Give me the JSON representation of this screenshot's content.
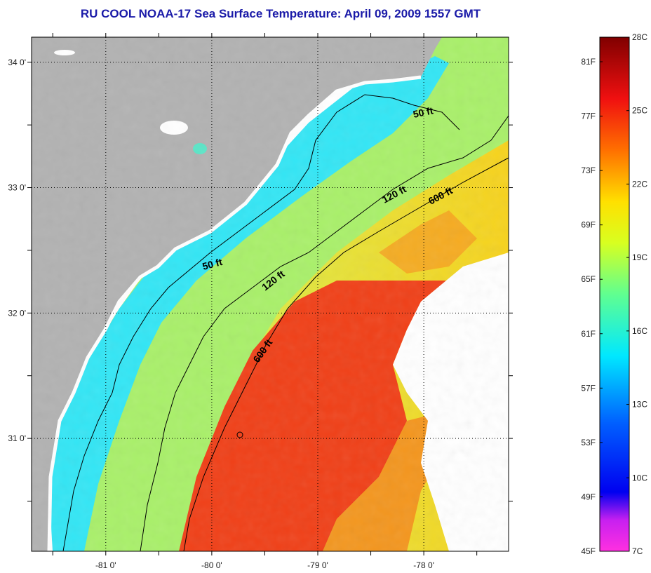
{
  "title": "RU COOL  NOAA-17  Sea Surface Temperature:  April 09, 2009 1557 GMT",
  "map": {
    "lon_range": [
      -81.7,
      -77.2
    ],
    "lat_range": [
      30.1,
      34.2
    ],
    "lat_ticks": [
      {
        "value": 34,
        "label": "34 0'"
      },
      {
        "value": 33,
        "label": "33 0'"
      },
      {
        "value": 32,
        "label": "32 0'"
      },
      {
        "value": 31,
        "label": "31 0'"
      }
    ],
    "lon_ticks": [
      {
        "value": -81,
        "label": "-81 0'"
      },
      {
        "value": -80,
        "label": "-80 0'"
      },
      {
        "value": -79,
        "label": "-79 0'"
      },
      {
        "value": -78,
        "label": "-78 0'"
      }
    ],
    "contours": [
      {
        "label": "50 ft"
      },
      {
        "label": "50 ft"
      },
      {
        "label": "120 ft"
      },
      {
        "label": "120 ft"
      },
      {
        "label": "600 ft"
      },
      {
        "label": "600 ft"
      }
    ],
    "colors": {
      "land": "#b2b2b2",
      "cloud": "#ffffff",
      "cold_water": "#33e6f5",
      "mid_water": "#a9f06a",
      "warm_water": "#f7d21c",
      "hot_water": "#f04018",
      "hottest_water": "#e02818"
    }
  },
  "colorbar": {
    "fahrenheit_labels": [
      "81F",
      "77F",
      "73F",
      "69F",
      "65F",
      "61F",
      "57F",
      "53F",
      "49F",
      "45F"
    ],
    "celsius_labels": [
      "28C",
      "25C",
      "22C",
      "19C",
      "16C",
      "13C",
      "10C",
      "7C"
    ],
    "gradient": [
      {
        "t": 0.0,
        "color": "#ff30e0"
      },
      {
        "t": 0.06,
        "color": "#c820f0"
      },
      {
        "t": 0.115,
        "color": "#0000f0"
      },
      {
        "t": 0.25,
        "color": "#0060ff"
      },
      {
        "t": 0.38,
        "color": "#00e8ff"
      },
      {
        "t": 0.5,
        "color": "#60ff90"
      },
      {
        "t": 0.6,
        "color": "#d8ff20"
      },
      {
        "t": 0.68,
        "color": "#ffe000"
      },
      {
        "t": 0.78,
        "color": "#ff7000"
      },
      {
        "t": 0.88,
        "color": "#f01010"
      },
      {
        "t": 1.0,
        "color": "#800000"
      }
    ]
  }
}
